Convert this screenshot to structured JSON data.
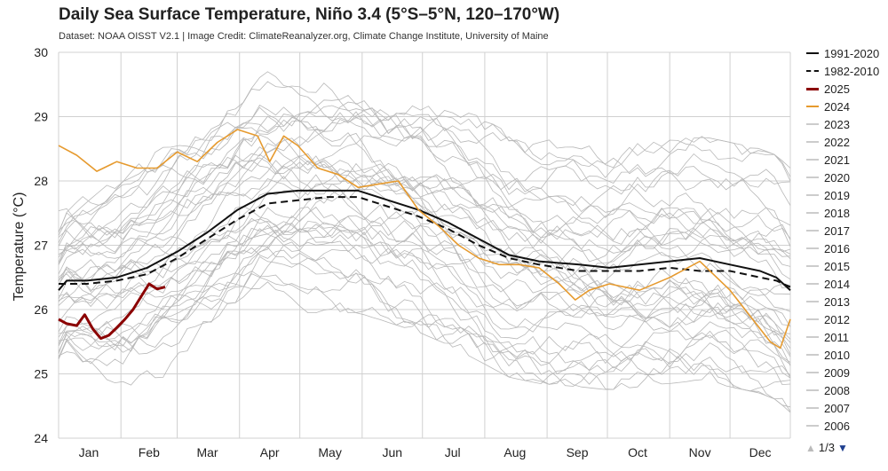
{
  "chart_data": {
    "type": "line",
    "title": "Daily Sea Surface Temperature, Niño 3.4 (5°S–5°N, 120–170°W)",
    "subtitle": "Dataset: NOAA OISST V2.1 | Image Credit: ClimateReanalyzer.org, Climate Change Institute, University of Maine",
    "xlabel": "",
    "ylabel": "Temperature (°C)",
    "ylim": [
      24,
      30
    ],
    "yticks": [
      24,
      25,
      26,
      27,
      28,
      29,
      30
    ],
    "xlim": [
      1,
      365
    ],
    "month_labels": [
      "Jan",
      "Feb",
      "Mar",
      "Apr",
      "May",
      "Jun",
      "Jul",
      "Aug",
      "Sep",
      "Oct",
      "Nov",
      "Dec"
    ],
    "month_day": [
      16,
      46,
      75,
      106,
      136,
      167,
      197,
      228,
      259,
      289,
      320,
      350
    ],
    "grid": true,
    "legend_position": "right",
    "legend": [
      "1991-2020",
      "1982-2010",
      "2025",
      "2024",
      "2023",
      "2022",
      "2021",
      "2020",
      "2019",
      "2018",
      "2017",
      "2016",
      "2015",
      "2014",
      "2013",
      "2012",
      "2011",
      "2010",
      "2009",
      "2008",
      "2007",
      "2006"
    ],
    "pager": "1/3",
    "series": [
      {
        "name": "1991-2020",
        "style": "solid",
        "color": "#111111",
        "day": [
          1,
          5,
          15,
          30,
          45,
          60,
          75,
          90,
          105,
          120,
          135,
          150,
          165,
          180,
          195,
          210,
          225,
          240,
          260,
          275,
          290,
          305,
          320,
          335,
          350,
          358,
          365
        ],
        "values": [
          26.3,
          26.45,
          26.45,
          26.5,
          26.65,
          26.9,
          27.2,
          27.55,
          27.8,
          27.85,
          27.85,
          27.85,
          27.7,
          27.55,
          27.35,
          27.1,
          26.85,
          26.75,
          26.7,
          26.65,
          26.7,
          26.75,
          26.8,
          26.7,
          26.6,
          26.5,
          26.3
        ]
      },
      {
        "name": "1982-2010",
        "style": "dashed",
        "color": "#111111",
        "day": [
          1,
          5,
          15,
          30,
          45,
          60,
          75,
          90,
          105,
          120,
          135,
          150,
          165,
          180,
          195,
          210,
          225,
          240,
          260,
          275,
          290,
          305,
          320,
          335,
          350,
          358,
          365
        ],
        "values": [
          26.4,
          26.4,
          26.4,
          26.45,
          26.55,
          26.8,
          27.1,
          27.4,
          27.65,
          27.7,
          27.75,
          27.75,
          27.6,
          27.45,
          27.25,
          27.0,
          26.8,
          26.7,
          26.6,
          26.6,
          26.6,
          26.65,
          26.6,
          26.6,
          26.5,
          26.45,
          26.35
        ]
      },
      {
        "name": "2025",
        "style": "solid",
        "color": "#8b0000",
        "day": [
          1,
          5,
          10,
          14,
          18,
          22,
          26,
          30,
          34,
          38,
          42,
          46,
          50,
          54
        ],
        "values": [
          25.85,
          25.78,
          25.75,
          25.92,
          25.7,
          25.55,
          25.6,
          25.72,
          25.85,
          26.0,
          26.2,
          26.4,
          26.32,
          26.35
        ]
      },
      {
        "name": "2024",
        "style": "solid",
        "color": "#e69a2e",
        "day": [
          1,
          10,
          20,
          30,
          40,
          50,
          60,
          70,
          80,
          90,
          100,
          106,
          113,
          120,
          130,
          140,
          150,
          160,
          170,
          180,
          190,
          200,
          210,
          220,
          230,
          240,
          250,
          258,
          265,
          275,
          290,
          305,
          320,
          335,
          345,
          355,
          360,
          365
        ],
        "values": [
          28.55,
          28.4,
          28.15,
          28.3,
          28.2,
          28.2,
          28.45,
          28.3,
          28.6,
          28.8,
          28.7,
          28.3,
          28.7,
          28.55,
          28.2,
          28.1,
          27.9,
          27.95,
          28.0,
          27.55,
          27.3,
          27.0,
          26.8,
          26.7,
          26.7,
          26.65,
          26.4,
          26.15,
          26.3,
          26.4,
          26.3,
          26.5,
          26.75,
          26.3,
          25.9,
          25.5,
          25.4,
          25.85
        ]
      }
    ]
  }
}
